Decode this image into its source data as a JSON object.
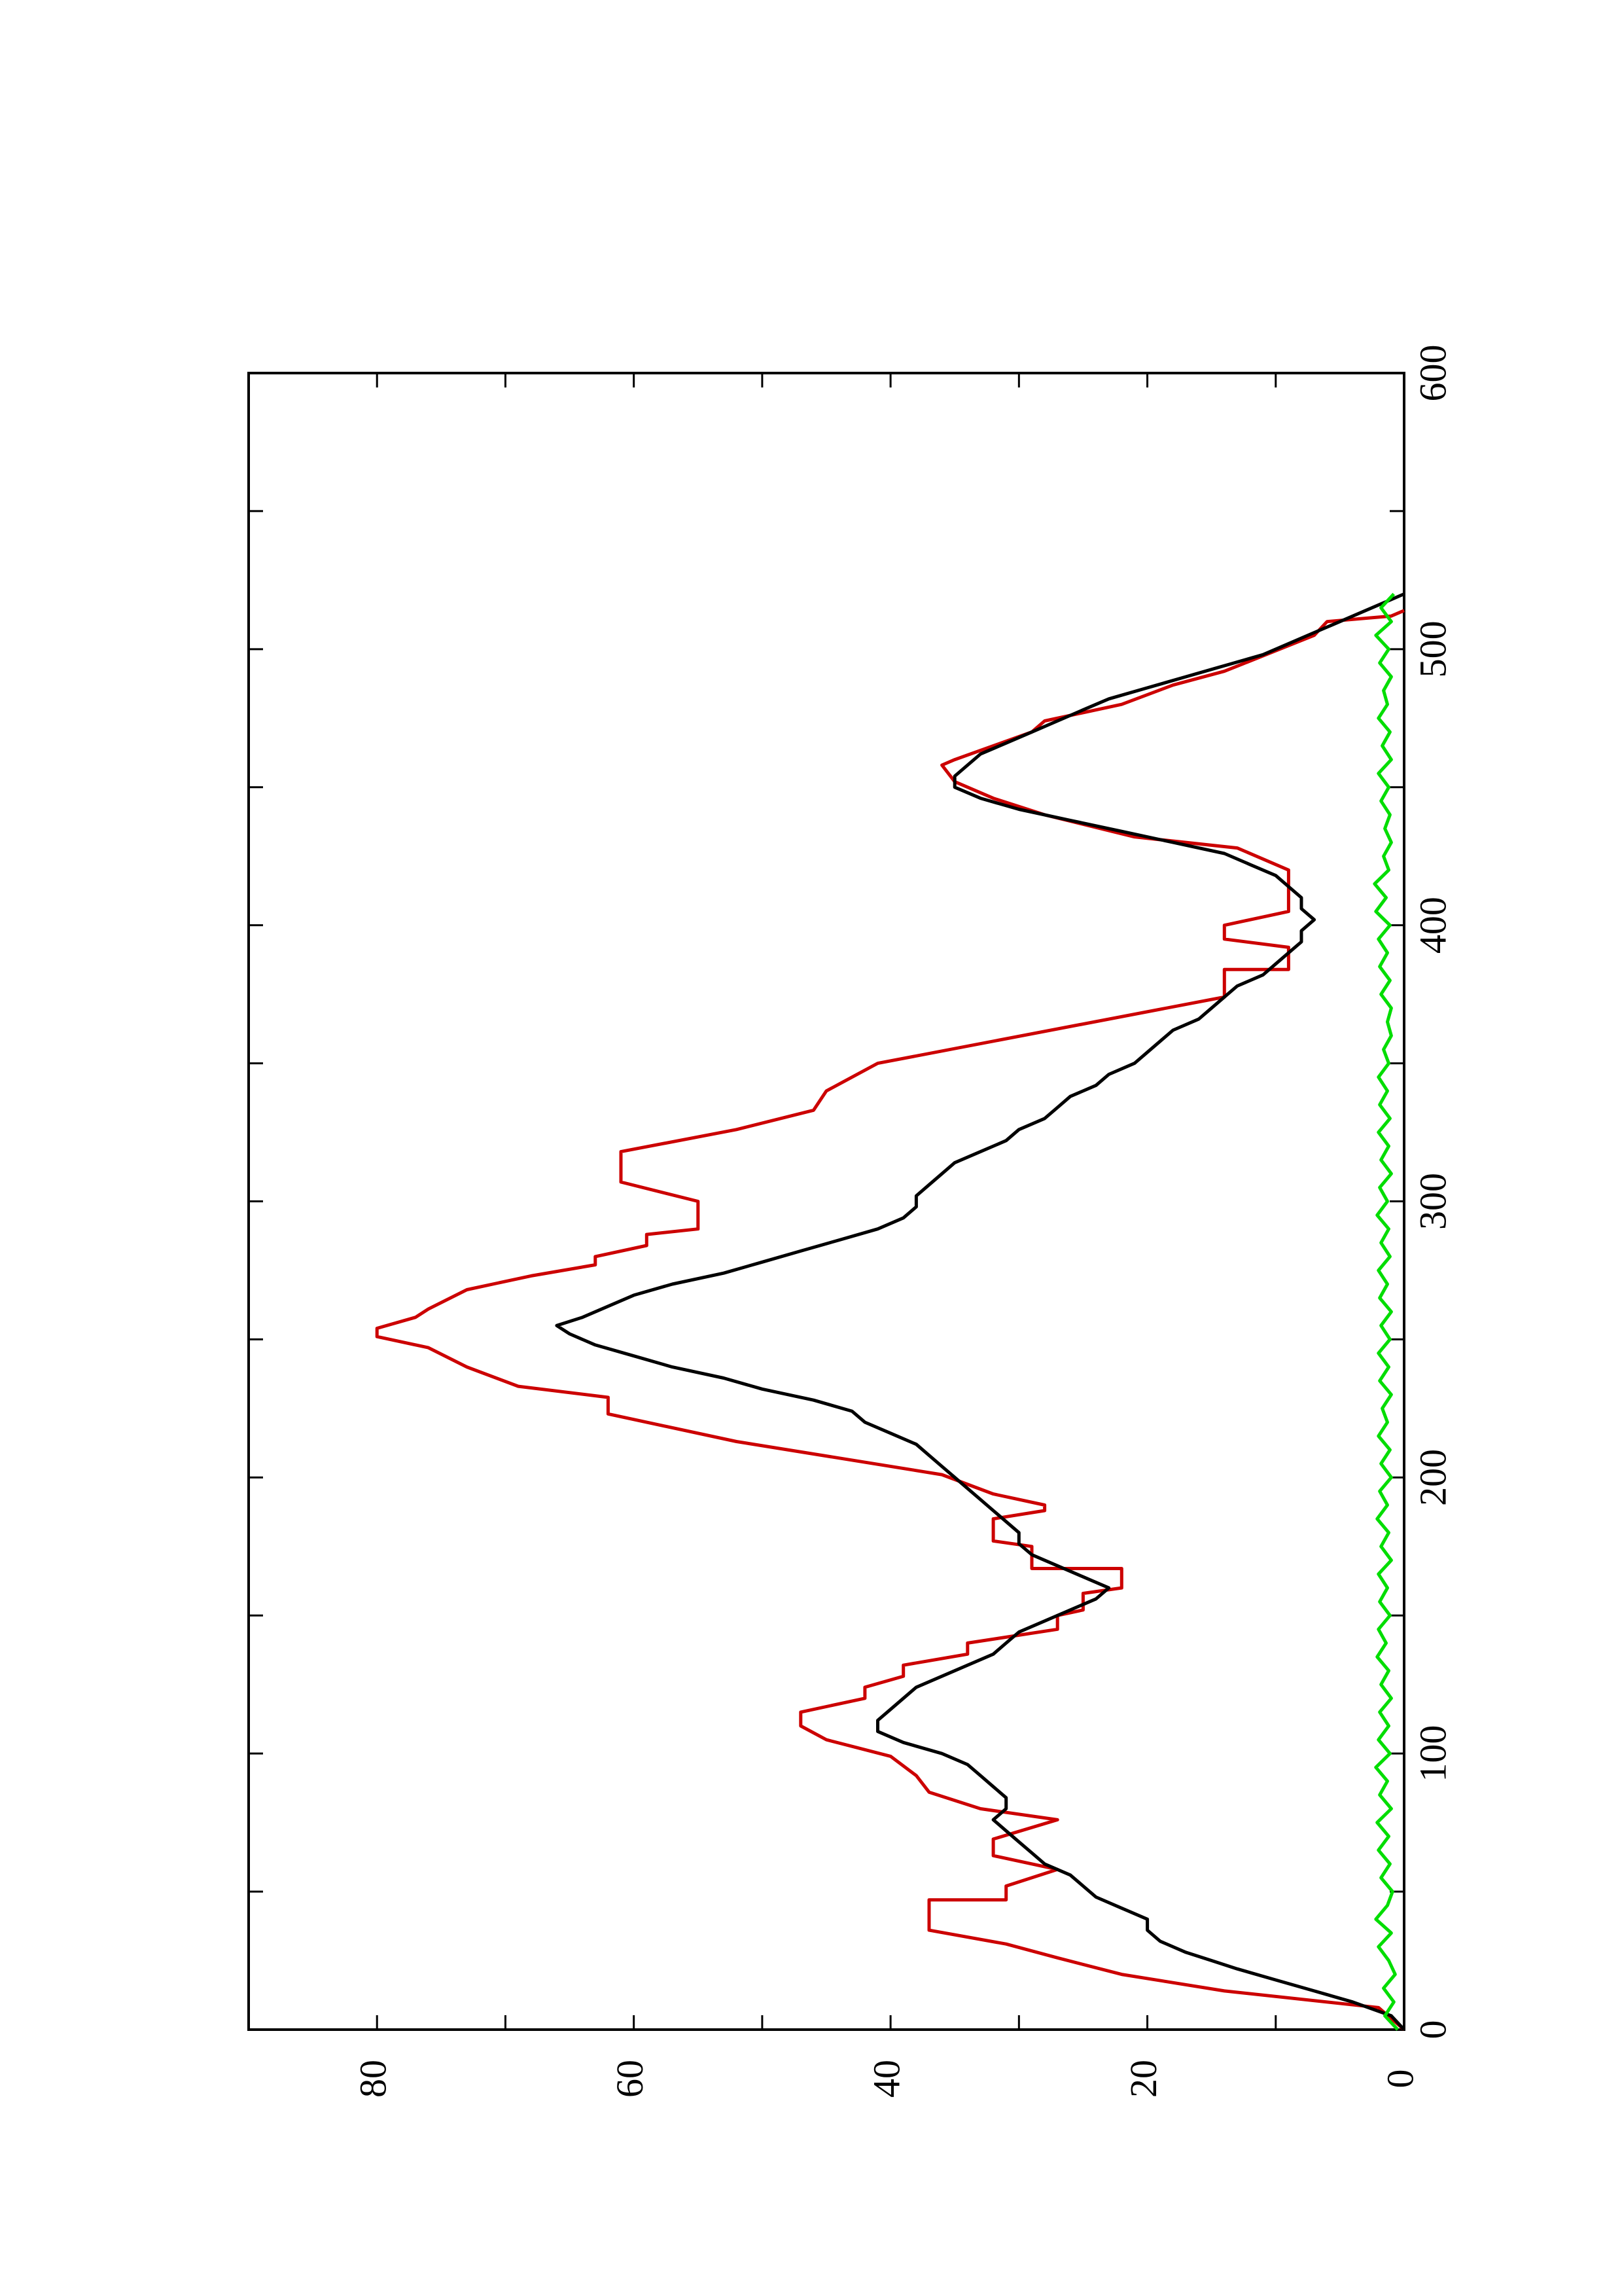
{
  "chart_data": {
    "type": "line",
    "title": "",
    "xlabel": "",
    "ylabel": "",
    "orientation": "rotated-90-clockwise",
    "xlim": [
      0,
      600
    ],
    "ylim": [
      0,
      90
    ],
    "x_ticks": [
      0,
      100,
      200,
      300,
      400,
      500,
      600
    ],
    "y_ticks": [
      0,
      20,
      40,
      60,
      80
    ],
    "grid": false,
    "legend": "none",
    "series": [
      {
        "color": "#cc0000",
        "style": "step-linear",
        "points": [
          [
            0,
            0
          ],
          [
            8,
            2
          ],
          [
            14,
            14
          ],
          [
            20,
            22
          ],
          [
            26,
            27
          ],
          [
            31,
            31
          ],
          [
            36,
            37
          ],
          [
            47,
            37
          ],
          [
            47,
            31
          ],
          [
            52,
            31
          ],
          [
            58,
            27
          ],
          [
            63,
            32
          ],
          [
            69,
            32
          ],
          [
            76,
            27
          ],
          [
            80,
            33
          ],
          [
            86,
            37
          ],
          [
            92,
            38
          ],
          [
            99,
            40
          ],
          [
            105,
            45
          ],
          [
            110,
            47
          ],
          [
            115,
            47
          ],
          [
            120,
            42
          ],
          [
            124,
            42
          ],
          [
            128,
            39
          ],
          [
            132,
            39
          ],
          [
            136,
            34
          ],
          [
            140,
            34
          ],
          [
            145,
            27
          ],
          [
            150,
            27
          ],
          [
            152,
            25
          ],
          [
            158,
            25
          ],
          [
            160,
            22
          ],
          [
            167,
            22
          ],
          [
            167,
            29
          ],
          [
            175,
            29
          ],
          [
            177,
            32
          ],
          [
            182,
            32
          ],
          [
            185,
            32
          ],
          [
            188,
            28
          ],
          [
            190,
            28
          ],
          [
            194,
            32
          ],
          [
            201,
            36
          ],
          [
            213,
            52
          ],
          [
            223,
            62
          ],
          [
            229,
            62
          ],
          [
            233,
            69
          ],
          [
            240,
            73
          ],
          [
            247,
            76
          ],
          [
            251,
            80
          ],
          [
            254,
            80
          ],
          [
            258,
            77
          ],
          [
            261,
            76
          ],
          [
            268,
            73
          ],
          [
            273,
            68
          ],
          [
            277,
            63
          ],
          [
            280,
            63
          ],
          [
            284,
            59
          ],
          [
            288,
            59
          ],
          [
            290,
            55
          ],
          [
            300,
            55
          ],
          [
            307,
            61
          ],
          [
            318,
            61
          ],
          [
            326,
            52
          ],
          [
            333,
            46
          ],
          [
            340,
            45
          ],
          [
            350,
            41
          ],
          [
            374,
            14
          ],
          [
            384,
            14
          ],
          [
            384,
            9
          ],
          [
            392,
            9
          ],
          [
            395,
            14
          ],
          [
            400,
            14
          ],
          [
            405,
            9
          ],
          [
            420,
            9
          ],
          [
            428,
            13
          ],
          [
            432,
            21
          ],
          [
            440,
            28
          ],
          [
            446,
            32
          ],
          [
            452,
            35
          ],
          [
            458,
            36
          ],
          [
            460,
            35
          ],
          [
            470,
            29
          ],
          [
            474,
            28
          ],
          [
            480,
            22
          ],
          [
            487,
            18
          ],
          [
            492,
            14
          ],
          [
            505,
            7
          ],
          [
            510,
            6
          ],
          [
            512,
            1
          ],
          [
            514,
            0
          ]
        ]
      },
      {
        "color": "#000000",
        "style": "smooth",
        "points": [
          [
            0,
            0
          ],
          [
            5,
            1
          ],
          [
            10,
            4
          ],
          [
            14,
            7
          ],
          [
            18,
            10
          ],
          [
            22,
            13
          ],
          [
            25,
            15
          ],
          [
            28,
            17
          ],
          [
            32,
            19
          ],
          [
            36,
            20
          ],
          [
            40,
            20
          ],
          [
            44,
            22
          ],
          [
            48,
            24
          ],
          [
            52,
            25
          ],
          [
            56,
            26
          ],
          [
            60,
            28
          ],
          [
            64,
            29
          ],
          [
            68,
            30
          ],
          [
            72,
            31
          ],
          [
            76,
            32
          ],
          [
            80,
            31
          ],
          [
            84,
            31
          ],
          [
            88,
            32
          ],
          [
            92,
            33
          ],
          [
            96,
            34
          ],
          [
            100,
            36
          ],
          [
            104,
            39
          ],
          [
            108,
            41
          ],
          [
            112,
            41
          ],
          [
            116,
            40
          ],
          [
            120,
            39
          ],
          [
            124,
            38
          ],
          [
            128,
            36
          ],
          [
            132,
            34
          ],
          [
            136,
            32
          ],
          [
            140,
            31
          ],
          [
            144,
            30
          ],
          [
            148,
            28
          ],
          [
            152,
            26
          ],
          [
            156,
            24
          ],
          [
            160,
            23
          ],
          [
            164,
            25
          ],
          [
            168,
            27
          ],
          [
            172,
            29
          ],
          [
            176,
            30
          ],
          [
            180,
            30
          ],
          [
            184,
            31
          ],
          [
            188,
            32
          ],
          [
            192,
            33
          ],
          [
            196,
            34
          ],
          [
            200,
            35
          ],
          [
            204,
            36
          ],
          [
            208,
            37
          ],
          [
            212,
            38
          ],
          [
            216,
            40
          ],
          [
            220,
            42
          ],
          [
            224,
            43
          ],
          [
            228,
            46
          ],
          [
            232,
            50
          ],
          [
            236,
            53
          ],
          [
            240,
            57
          ],
          [
            244,
            60
          ],
          [
            248,
            63
          ],
          [
            252,
            65
          ],
          [
            255,
            66
          ],
          [
            258,
            64
          ],
          [
            262,
            62
          ],
          [
            266,
            60
          ],
          [
            270,
            57
          ],
          [
            274,
            53
          ],
          [
            278,
            50
          ],
          [
            282,
            47
          ],
          [
            286,
            44
          ],
          [
            290,
            41
          ],
          [
            294,
            39
          ],
          [
            298,
            38
          ],
          [
            302,
            38
          ],
          [
            306,
            37
          ],
          [
            310,
            36
          ],
          [
            314,
            35
          ],
          [
            318,
            33
          ],
          [
            322,
            31
          ],
          [
            326,
            30
          ],
          [
            330,
            28
          ],
          [
            334,
            27
          ],
          [
            338,
            26
          ],
          [
            342,
            24
          ],
          [
            346,
            23
          ],
          [
            350,
            21
          ],
          [
            354,
            20
          ],
          [
            358,
            19
          ],
          [
            362,
            18
          ],
          [
            366,
            16
          ],
          [
            370,
            15
          ],
          [
            374,
            14
          ],
          [
            378,
            13
          ],
          [
            382,
            11
          ],
          [
            386,
            10
          ],
          [
            390,
            9
          ],
          [
            394,
            8
          ],
          [
            398,
            8
          ],
          [
            402,
            7
          ],
          [
            406,
            8
          ],
          [
            410,
            8
          ],
          [
            414,
            9
          ],
          [
            418,
            10
          ],
          [
            422,
            12
          ],
          [
            426,
            14
          ],
          [
            430,
            18
          ],
          [
            434,
            22
          ],
          [
            438,
            26
          ],
          [
            442,
            30
          ],
          [
            446,
            33
          ],
          [
            450,
            35
          ],
          [
            454,
            35
          ],
          [
            458,
            34
          ],
          [
            462,
            33
          ],
          [
            466,
            31
          ],
          [
            470,
            29
          ],
          [
            474,
            27
          ],
          [
            478,
            25
          ],
          [
            482,
            23
          ],
          [
            486,
            20
          ],
          [
            490,
            17
          ],
          [
            494,
            14
          ],
          [
            498,
            11
          ],
          [
            502,
            9
          ],
          [
            506,
            7
          ],
          [
            510,
            5
          ],
          [
            514,
            3
          ],
          [
            518,
            1
          ],
          [
            520,
            0
          ]
        ]
      },
      {
        "color": "#00dd00",
        "style": "noisy",
        "points": [
          [
            0,
            0.5
          ],
          [
            5,
            1.5
          ],
          [
            10,
            0.8
          ],
          [
            15,
            1.6
          ],
          [
            20,
            0.7
          ],
          [
            25,
            1.2
          ],
          [
            30,
            2.0
          ],
          [
            35,
            1.0
          ],
          [
            40,
            2.2
          ],
          [
            45,
            1.3
          ],
          [
            50,
            0.9
          ],
          [
            55,
            1.8
          ],
          [
            60,
            1.1
          ],
          [
            65,
            2.0
          ],
          [
            70,
            1.2
          ],
          [
            75,
            2.1
          ],
          [
            80,
            1.0
          ],
          [
            85,
            1.9
          ],
          [
            90,
            1.3
          ],
          [
            95,
            2.2
          ],
          [
            100,
            1.1
          ],
          [
            105,
            2.0
          ],
          [
            110,
            1.2
          ],
          [
            115,
            1.9
          ],
          [
            120,
            1.0
          ],
          [
            125,
            1.8
          ],
          [
            130,
            1.2
          ],
          [
            135,
            2.1
          ],
          [
            140,
            1.4
          ],
          [
            145,
            2.0
          ],
          [
            150,
            1.1
          ],
          [
            155,
            1.9
          ],
          [
            160,
            1.3
          ],
          [
            165,
            2.0
          ],
          [
            170,
            1.0
          ],
          [
            175,
            1.8
          ],
          [
            180,
            1.2
          ],
          [
            185,
            2.1
          ],
          [
            190,
            1.3
          ],
          [
            195,
            1.9
          ],
          [
            200,
            1.0
          ],
          [
            205,
            1.8
          ],
          [
            210,
            1.1
          ],
          [
            215,
            2.0
          ],
          [
            220,
            1.3
          ],
          [
            225,
            1.7
          ],
          [
            230,
            1.0
          ],
          [
            235,
            1.9
          ],
          [
            240,
            1.2
          ],
          [
            245,
            2.0
          ],
          [
            250,
            1.1
          ],
          [
            255,
            1.8
          ],
          [
            260,
            1.0
          ],
          [
            265,
            1.9
          ],
          [
            270,
            1.3
          ],
          [
            275,
            2.0
          ],
          [
            280,
            1.1
          ],
          [
            285,
            1.8
          ],
          [
            290,
            1.2
          ],
          [
            295,
            2.1
          ],
          [
            300,
            1.3
          ],
          [
            305,
            1.9
          ],
          [
            310,
            1.0
          ],
          [
            315,
            1.8
          ],
          [
            320,
            1.2
          ],
          [
            325,
            2.0
          ],
          [
            330,
            1.1
          ],
          [
            335,
            1.9
          ],
          [
            340,
            1.3
          ],
          [
            345,
            2.0
          ],
          [
            350,
            1.2
          ],
          [
            355,
            1.6
          ],
          [
            360,
            1.0
          ],
          [
            365,
            1.3
          ],
          [
            370,
            1.0
          ],
          [
            375,
            1.8
          ],
          [
            380,
            1.1
          ],
          [
            385,
            1.9
          ],
          [
            390,
            1.3
          ],
          [
            395,
            2.0
          ],
          [
            400,
            1.1
          ],
          [
            405,
            2.2
          ],
          [
            410,
            1.4
          ],
          [
            415,
            2.3
          ],
          [
            420,
            1.2
          ],
          [
            425,
            1.6
          ],
          [
            430,
            1.0
          ],
          [
            435,
            1.5
          ],
          [
            440,
            1.1
          ],
          [
            445,
            1.8
          ],
          [
            450,
            1.2
          ],
          [
            455,
            2.0
          ],
          [
            460,
            1.0
          ],
          [
            465,
            1.7
          ],
          [
            470,
            1.1
          ],
          [
            475,
            2.0
          ],
          [
            480,
            1.3
          ],
          [
            485,
            1.6
          ],
          [
            490,
            1.0
          ],
          [
            495,
            1.9
          ],
          [
            500,
            1.2
          ],
          [
            505,
            2.2
          ],
          [
            510,
            1.0
          ],
          [
            515,
            1.8
          ],
          [
            520,
            0.8
          ]
        ]
      }
    ]
  }
}
